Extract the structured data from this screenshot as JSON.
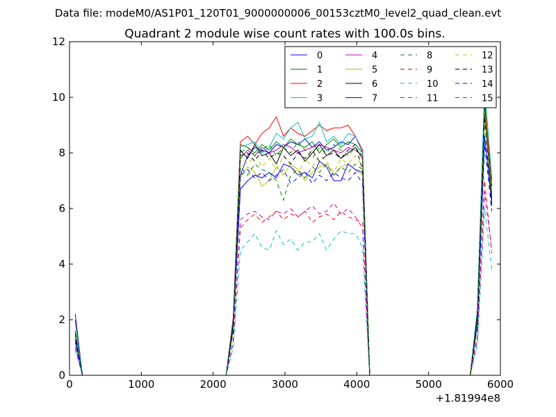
{
  "chart_data": {
    "type": "line",
    "suptitle": "Data file: modeM0/AS1P01_120T01_9000000006_00153cztM0_level2_quad_clean.evt",
    "title": "Quadrant 2 module wise count rates with 100.0s bins.",
    "x_offset_label": "+1.81994e8",
    "xlim": [
      0,
      6000
    ],
    "ylim": [
      0,
      12
    ],
    "x_ticks": [
      0,
      1000,
      2000,
      3000,
      4000,
      5000,
      6000
    ],
    "y_ticks": [
      0,
      2,
      4,
      6,
      8,
      10,
      12
    ],
    "legend_position": "upper-right",
    "legend_columns": 4,
    "x": [
      80,
      180,
      280,
      380,
      480,
      580,
      680,
      780,
      880,
      980,
      1080,
      1180,
      1280,
      1380,
      1480,
      1580,
      1680,
      1780,
      1880,
      1980,
      2080,
      2180,
      2280,
      2380,
      2480,
      2580,
      2680,
      2780,
      2880,
      2980,
      3080,
      3180,
      3280,
      3380,
      3480,
      3580,
      3680,
      3780,
      3880,
      3980,
      4080,
      4180,
      4280,
      4380,
      4480,
      4580,
      4680,
      4780,
      4880,
      4980,
      5080,
      5180,
      5280,
      5380,
      5480,
      5580,
      5680,
      5780,
      5880
    ],
    "series": [
      {
        "name": "0",
        "color": "#0000ff",
        "dashed": false,
        "values": [
          2.2,
          0,
          0,
          0,
          0,
          0,
          0,
          0,
          0,
          0,
          0,
          0,
          0,
          0,
          0,
          0,
          0,
          0,
          0,
          0,
          0,
          0,
          2.0,
          7.2,
          7.9,
          8.2,
          8.1,
          8.0,
          8.3,
          8.2,
          8.4,
          8.3,
          8.5,
          8.2,
          8.4,
          8.1,
          8.2,
          8.4,
          8.3,
          8.6,
          8.1,
          0,
          0,
          0,
          0,
          0,
          0,
          0,
          0,
          0,
          0,
          0,
          0,
          0,
          0,
          0,
          2.2,
          9.5,
          6.8
        ]
      },
      {
        "name": "1",
        "color": "#008000",
        "dashed": false,
        "values": [
          1.6,
          0,
          0,
          0,
          0,
          0,
          0,
          0,
          0,
          0,
          0,
          0,
          0,
          0,
          0,
          0,
          0,
          0,
          0,
          0,
          0,
          0,
          1.8,
          8.3,
          8.2,
          8.0,
          8.3,
          8.1,
          8.4,
          8.2,
          8.5,
          8.3,
          8.2,
          8.4,
          8.0,
          8.3,
          8.5,
          8.2,
          8.4,
          8.3,
          8.0,
          0,
          0,
          0,
          0,
          0,
          0,
          0,
          0,
          0,
          0,
          0,
          0,
          0,
          0,
          0,
          2.1,
          10.0,
          6.6
        ]
      },
      {
        "name": "2",
        "color": "#ff0000",
        "dashed": false,
        "values": [
          2.0,
          0,
          0,
          0,
          0,
          0,
          0,
          0,
          0,
          0,
          0,
          0,
          0,
          0,
          0,
          0,
          0,
          0,
          0,
          0,
          0,
          0,
          2.1,
          8.4,
          8.6,
          8.3,
          8.7,
          8.9,
          9.3,
          8.6,
          8.9,
          8.7,
          8.6,
          8.8,
          9.0,
          8.8,
          8.9,
          8.9,
          9.0,
          8.6,
          8.1,
          0,
          0,
          0,
          0,
          0,
          0,
          0,
          0,
          0,
          0,
          0,
          0,
          0,
          0,
          0,
          2.3,
          9.8,
          7.0
        ]
      },
      {
        "name": "3",
        "color": "#00bfbf",
        "dashed": false,
        "values": [
          1.9,
          0,
          0,
          0,
          0,
          0,
          0,
          0,
          0,
          0,
          0,
          0,
          0,
          0,
          0,
          0,
          0,
          0,
          0,
          0,
          0,
          0,
          2.0,
          8.2,
          8.3,
          8.4,
          8.0,
          8.2,
          8.7,
          8.5,
          8.9,
          9.1,
          8.5,
          8.6,
          9.1,
          8.4,
          8.6,
          8.3,
          8.7,
          8.6,
          8.0,
          0,
          0,
          0,
          0,
          0,
          0,
          0,
          0,
          0,
          0,
          0,
          0,
          0,
          0,
          0,
          2.4,
          10.4,
          7.1
        ]
      },
      {
        "name": "4",
        "color": "#bf00bf",
        "dashed": false,
        "values": [
          1.3,
          0,
          0,
          0,
          0,
          0,
          0,
          0,
          0,
          0,
          0,
          0,
          0,
          0,
          0,
          0,
          0,
          0,
          0,
          0,
          0,
          0,
          1.7,
          7.8,
          8.1,
          7.9,
          8.2,
          8.0,
          8.1,
          8.3,
          8.2,
          8.0,
          8.1,
          8.2,
          8.3,
          8.2,
          8.1,
          8.0,
          8.2,
          8.1,
          7.9,
          0,
          0,
          0,
          0,
          0,
          0,
          0,
          0,
          0,
          0,
          0,
          0,
          0,
          0,
          0,
          2.0,
          9.6,
          6.5
        ]
      },
      {
        "name": "5",
        "color": "#bfbf00",
        "dashed": false,
        "values": [
          1.5,
          0,
          0,
          0,
          0,
          0,
          0,
          0,
          0,
          0,
          0,
          0,
          0,
          0,
          0,
          0,
          0,
          0,
          0,
          0,
          0,
          0,
          1.6,
          7.1,
          7.5,
          7.3,
          6.8,
          7.0,
          7.5,
          7.2,
          7.6,
          7.4,
          7.0,
          7.3,
          7.5,
          7.6,
          7.2,
          7.5,
          7.6,
          7.4,
          7.2,
          0,
          0,
          0,
          0,
          0,
          0,
          0,
          0,
          0,
          0,
          0,
          0,
          0,
          0,
          0,
          1.9,
          9.4,
          6.4
        ]
      },
      {
        "name": "6",
        "color": "#000000",
        "dashed": false,
        "values": [
          1.4,
          0,
          0,
          0,
          0,
          0,
          0,
          0,
          0,
          0,
          0,
          0,
          0,
          0,
          0,
          0,
          0,
          0,
          0,
          0,
          0,
          0,
          1.9,
          8.1,
          7.8,
          8.3,
          7.9,
          8.0,
          7.6,
          8.2,
          7.9,
          8.1,
          7.7,
          8.0,
          8.3,
          7.9,
          8.1,
          7.8,
          8.0,
          8.2,
          7.8,
          0,
          0,
          0,
          0,
          0,
          0,
          0,
          0,
          0,
          0,
          0,
          0,
          0,
          0,
          0,
          2.2,
          9.7,
          6.3
        ]
      },
      {
        "name": "7",
        "color": "#0000ff",
        "dashed": false,
        "values": [
          1.2,
          0,
          0,
          0,
          0,
          0,
          0,
          0,
          0,
          0,
          0,
          0,
          0,
          0,
          0,
          0,
          0,
          0,
          0,
          0,
          0,
          0,
          1.6,
          6.7,
          7.0,
          7.2,
          7.1,
          7.3,
          7.1,
          7.6,
          7.5,
          7.2,
          7.3,
          7.1,
          7.7,
          7.5,
          7.0,
          7.0,
          7.6,
          7.4,
          7.3,
          0,
          0,
          0,
          0,
          0,
          0,
          0,
          0,
          0,
          0,
          0,
          0,
          0,
          0,
          0,
          1.8,
          8.6,
          6.2
        ]
      },
      {
        "name": "8",
        "color": "#008000",
        "dashed": true,
        "values": [
          1.5,
          0,
          0,
          0,
          0,
          0,
          0,
          0,
          0,
          0,
          0,
          0,
          0,
          0,
          0,
          0,
          0,
          0,
          0,
          0,
          0,
          0,
          1.7,
          7.5,
          7.2,
          7.6,
          7.4,
          7.3,
          7.0,
          6.3,
          7.2,
          7.4,
          7.1,
          7.5,
          7.3,
          7.6,
          7.2,
          7.5,
          7.3,
          7.6,
          7.4,
          0,
          0,
          0,
          0,
          0,
          0,
          0,
          0,
          0,
          0,
          0,
          0,
          0,
          0,
          0,
          1.9,
          9.2,
          6.1
        ]
      },
      {
        "name": "9",
        "color": "#ff0000",
        "dashed": true,
        "values": [
          1.0,
          0,
          0,
          0,
          0,
          0,
          0,
          0,
          0,
          0,
          0,
          0,
          0,
          0,
          0,
          0,
          0,
          0,
          0,
          0,
          0,
          0,
          1.2,
          5.3,
          5.6,
          5.8,
          5.5,
          5.7,
          5.9,
          5.6,
          5.8,
          5.7,
          5.9,
          5.5,
          5.7,
          5.8,
          5.6,
          5.9,
          5.7,
          5.6,
          5.5,
          0,
          0,
          0,
          0,
          0,
          0,
          0,
          0,
          0,
          0,
          0,
          0,
          0,
          0,
          0,
          1.4,
          7.0,
          4.4
        ]
      },
      {
        "name": "10",
        "color": "#00bfbf",
        "dashed": true,
        "values": [
          0.9,
          0,
          0,
          0,
          0,
          0,
          0,
          0,
          0,
          0,
          0,
          0,
          0,
          0,
          0,
          0,
          0,
          0,
          0,
          0,
          0,
          0,
          1.0,
          4.5,
          4.8,
          5.1,
          4.6,
          4.5,
          5.2,
          4.7,
          4.9,
          4.5,
          4.8,
          4.8,
          5.1,
          4.5,
          4.9,
          5.2,
          5.1,
          5.1,
          4.6,
          0,
          0,
          0,
          0,
          0,
          0,
          0,
          0,
          0,
          0,
          0,
          0,
          0,
          0,
          0,
          1.1,
          6.0,
          3.8
        ]
      },
      {
        "name": "11",
        "color": "#bf00bf",
        "dashed": true,
        "values": [
          1.0,
          0,
          0,
          0,
          0,
          0,
          0,
          0,
          0,
          0,
          0,
          0,
          0,
          0,
          0,
          0,
          0,
          0,
          0,
          0,
          0,
          0,
          1.2,
          5.6,
          5.8,
          5.9,
          5.7,
          5.6,
          5.9,
          5.8,
          6.0,
          5.7,
          5.9,
          6.1,
          5.8,
          5.9,
          6.2,
          5.8,
          6.0,
          5.7,
          5.3,
          0,
          0,
          0,
          0,
          0,
          0,
          0,
          0,
          0,
          0,
          0,
          0,
          0,
          0,
          0,
          1.3,
          6.6,
          4.5
        ]
      },
      {
        "name": "12",
        "color": "#bfbf00",
        "dashed": true,
        "values": [
          1.4,
          0,
          0,
          0,
          0,
          0,
          0,
          0,
          0,
          0,
          0,
          0,
          0,
          0,
          0,
          0,
          0,
          0,
          0,
          0,
          0,
          0,
          1.6,
          7.8,
          7.6,
          7.9,
          7.5,
          7.8,
          7.4,
          7.9,
          7.6,
          7.2,
          7.8,
          7.5,
          7.9,
          7.7,
          7.3,
          7.8,
          7.6,
          7.9,
          7.5,
          0,
          0,
          0,
          0,
          0,
          0,
          0,
          0,
          0,
          0,
          0,
          0,
          0,
          0,
          0,
          1.9,
          9.5,
          6.5
        ]
      },
      {
        "name": "13",
        "color": "#000000",
        "dashed": true,
        "values": [
          1.5,
          0,
          0,
          0,
          0,
          0,
          0,
          0,
          0,
          0,
          0,
          0,
          0,
          0,
          0,
          0,
          0,
          0,
          0,
          0,
          0,
          0,
          1.8,
          7.9,
          8.0,
          7.7,
          8.1,
          7.8,
          8.0,
          7.9,
          7.6,
          8.0,
          7.8,
          8.1,
          7.7,
          7.9,
          8.0,
          7.8,
          8.1,
          8.3,
          7.4,
          0,
          0,
          0,
          0,
          0,
          0,
          0,
          0,
          0,
          0,
          0,
          0,
          0,
          0,
          0,
          2.1,
          9.3,
          6.0
        ]
      },
      {
        "name": "14",
        "color": "#0000ff",
        "dashed": true,
        "values": [
          1.3,
          0,
          0,
          0,
          0,
          0,
          0,
          0,
          0,
          0,
          0,
          0,
          0,
          0,
          0,
          0,
          0,
          0,
          0,
          0,
          0,
          0,
          1.6,
          7.2,
          7.4,
          7.1,
          7.3,
          7.0,
          7.2,
          7.4,
          6.9,
          7.1,
          7.3,
          6.9,
          7.2,
          7.0,
          7.3,
          7.1,
          7.0,
          7.3,
          6.9,
          0,
          0,
          0,
          0,
          0,
          0,
          0,
          0,
          0,
          0,
          0,
          0,
          0,
          0,
          0,
          1.8,
          8.3,
          5.9
        ]
      },
      {
        "name": "15",
        "color": "#008000",
        "dashed": true,
        "values": [
          1.6,
          0,
          0,
          0,
          0,
          0,
          0,
          0,
          0,
          0,
          0,
          0,
          0,
          0,
          0,
          0,
          0,
          0,
          0,
          0,
          0,
          0,
          1.8,
          8.0,
          8.2,
          7.9,
          8.1,
          8.3,
          7.9,
          8.2,
          8.0,
          8.4,
          8.1,
          7.8,
          8.2,
          8.0,
          8.3,
          8.1,
          7.9,
          8.2,
          7.9,
          0,
          0,
          0,
          0,
          0,
          0,
          0,
          0,
          0,
          0,
          0,
          0,
          0,
          0,
          0,
          2.0,
          9.6,
          6.7
        ]
      }
    ]
  }
}
